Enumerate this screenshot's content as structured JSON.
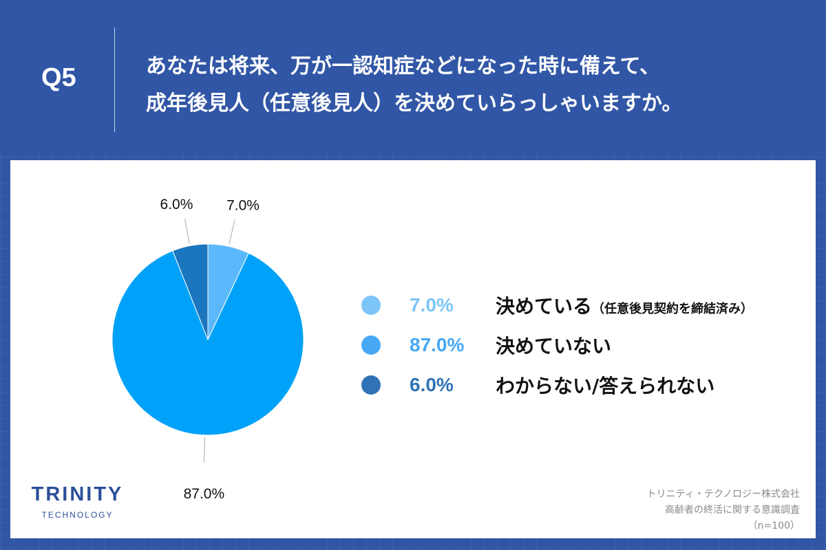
{
  "header": {
    "q": "Q5",
    "title_lines": [
      "あなたは将来、万が一認知症などになった時に備えて、",
      "成年後見人（任意後見人）を決めていらっしゃいますか。"
    ]
  },
  "chart_data": {
    "type": "pie",
    "categories": [
      "決めている",
      "決めていない",
      "わからない/答えられない"
    ],
    "category_note": "（任意後見契約を締結済み）",
    "values": [
      7.0,
      87.0,
      6.0
    ],
    "labels": [
      "7.0%",
      "87.0%",
      "6.0%"
    ],
    "slice_colors": [
      "#5bb9fb",
      "#00a2f9",
      "#1b76bd"
    ],
    "legend_colors": [
      "#7cc5f9",
      "#46a8f5",
      "#2f72b5"
    ],
    "legend_placement": "right"
  },
  "logo": {
    "main": "TRINITY",
    "sub": "TECHNOLOGY"
  },
  "source": [
    "トリニティ・テクノロジー株式会社",
    "高齢者の終活に関する意識調査",
    "（n=100）"
  ]
}
